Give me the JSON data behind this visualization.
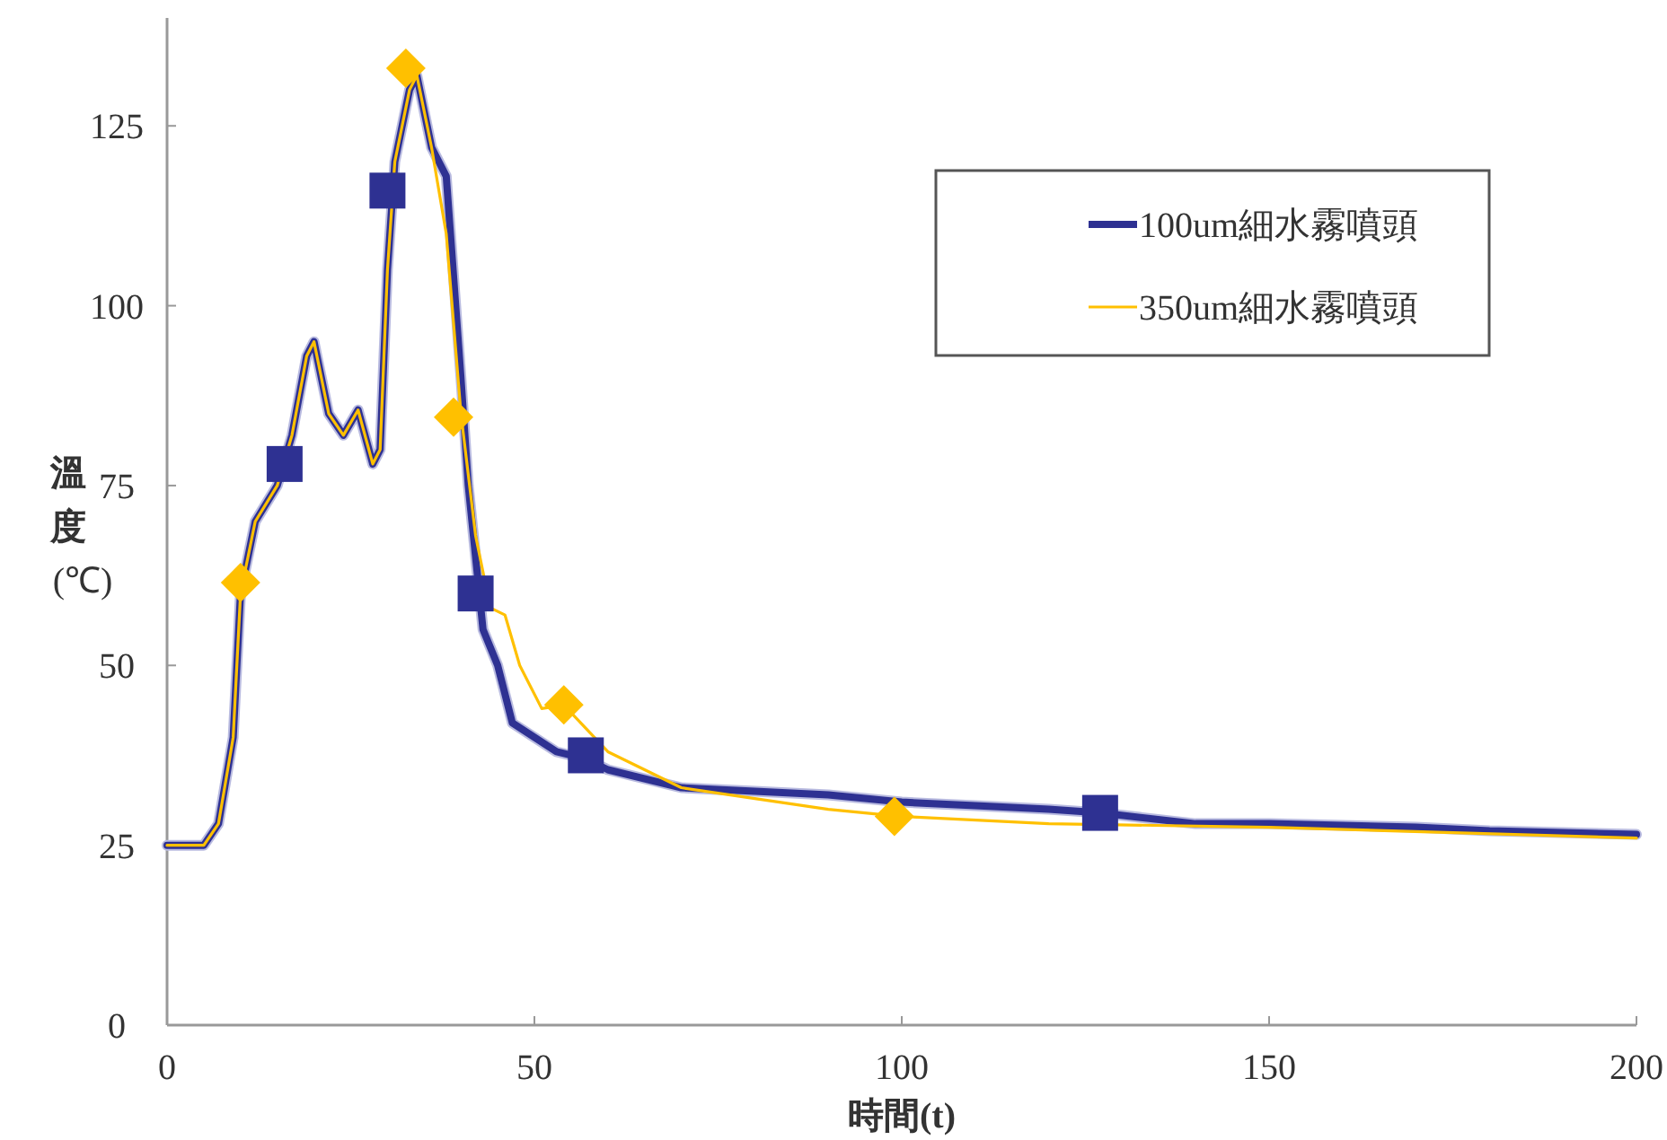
{
  "chart_data": {
    "type": "line",
    "xlabel": "時間(t)",
    "ylabel": "溫度(℃)",
    "xlim": [
      0,
      200
    ],
    "ylim": [
      0,
      140
    ],
    "xticks": [
      0,
      50,
      100,
      150,
      200
    ],
    "yticks": [
      0,
      25,
      50,
      75,
      100,
      125
    ],
    "grid": false,
    "legend": "top right",
    "series": [
      {
        "name": "100um細水霧噴頭",
        "color": "#2e3192",
        "x": [
          0,
          5,
          7,
          9,
          10,
          12,
          15,
          17,
          19,
          20,
          22,
          24,
          26,
          28,
          29,
          30,
          31,
          33,
          34,
          36,
          38,
          40,
          41,
          43,
          45,
          47,
          50,
          53,
          57,
          60,
          70,
          80,
          90,
          100,
          110,
          120,
          127,
          140,
          150,
          170,
          180,
          200
        ],
        "values": [
          25,
          25,
          28,
          40,
          60,
          70,
          75,
          82,
          93,
          95,
          85,
          82,
          85.5,
          78,
          80,
          105,
          120,
          130,
          132,
          122,
          118,
          90,
          75,
          55,
          50,
          42,
          40,
          38,
          37,
          35.5,
          33,
          32.5,
          32,
          31,
          30.5,
          30,
          29.5,
          28,
          28,
          27.5,
          27,
          26.5
        ]
      },
      {
        "name": "350um細水霧噴頭",
        "color": "#ffc000",
        "x": [
          0,
          5,
          7,
          9,
          10,
          12,
          15,
          17,
          19,
          20,
          22,
          24,
          26,
          28,
          29,
          30,
          31,
          33,
          34,
          36,
          38,
          40,
          42,
          44,
          46,
          48,
          51,
          54,
          60,
          70,
          80,
          90,
          100,
          120,
          150,
          200
        ],
        "values": [
          25,
          25,
          28,
          40,
          60,
          70,
          75,
          82,
          93,
          95,
          85,
          82,
          85.5,
          78,
          80,
          105,
          120,
          130,
          132,
          122,
          110,
          85,
          68,
          58,
          57,
          50,
          44,
          44.5,
          38,
          33,
          31.5,
          30,
          29,
          28,
          27.5,
          26
        ]
      },
      {
        "color": "#2e3192",
        "type": "scatter",
        "marker": "square",
        "x": [
          16,
          30,
          42,
          57,
          127
        ],
        "values": [
          78,
          116,
          60,
          37.5,
          29.5
        ]
      },
      {
        "color": "#ffc000",
        "type": "scatter",
        "marker": "diamond",
        "x": [
          10,
          32.5,
          39,
          54,
          99
        ],
        "values": [
          61.5,
          133,
          84.5,
          44.5,
          29
        ]
      }
    ]
  }
}
